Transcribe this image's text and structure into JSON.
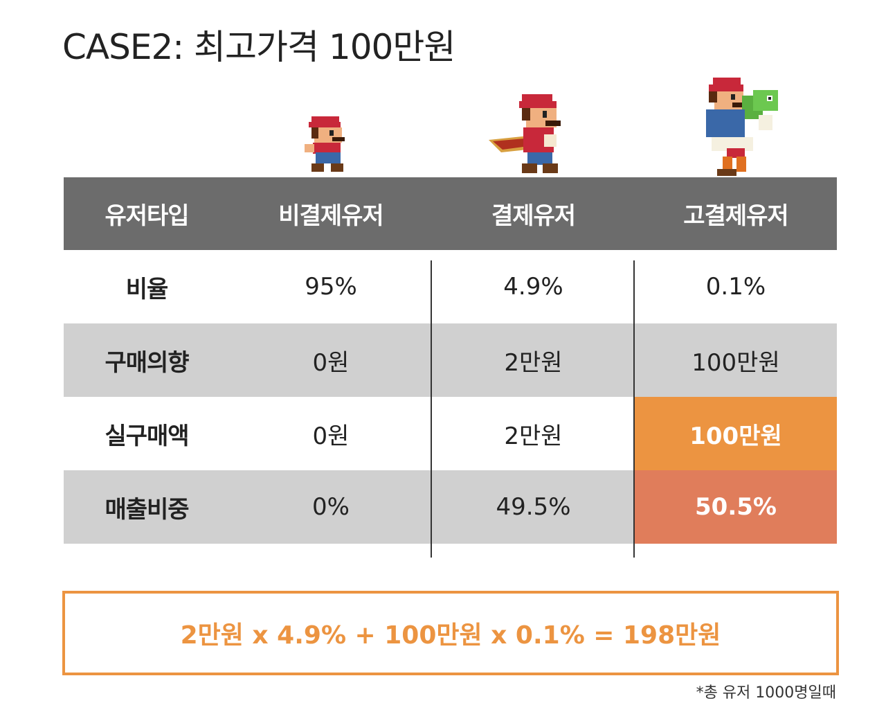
{
  "title": "CASE2: 최고가격 100만원",
  "chart_data": {
    "type": "table",
    "columns": [
      "유저타입",
      "비결제유저",
      "결제유저",
      "고결제유저"
    ],
    "rows": [
      {
        "label": "비율",
        "values": [
          "95%",
          "4.9%",
          "0.1%"
        ]
      },
      {
        "label": "구매의향",
        "values": [
          "0원",
          "2만원",
          "100만원"
        ]
      },
      {
        "label": "실구매액",
        "values": [
          "0원",
          "2만원",
          "100만원"
        ]
      },
      {
        "label": "매출비중",
        "values": [
          "0%",
          "49.5%",
          "50.5%"
        ]
      }
    ]
  },
  "formula": "2만원 x 4.9% + 100만원 x 0.1% = 198만원",
  "footnote": "*총 유저 1000명일때",
  "colors": {
    "header_bg": "#6c6c6c",
    "stripe_bg": "#d0d0d0",
    "highlight_orange": "#ec9441",
    "highlight_coral": "#e07d5b"
  },
  "icons": [
    "mario-small-icon",
    "mario-cape-icon",
    "mario-yoshi-icon"
  ]
}
